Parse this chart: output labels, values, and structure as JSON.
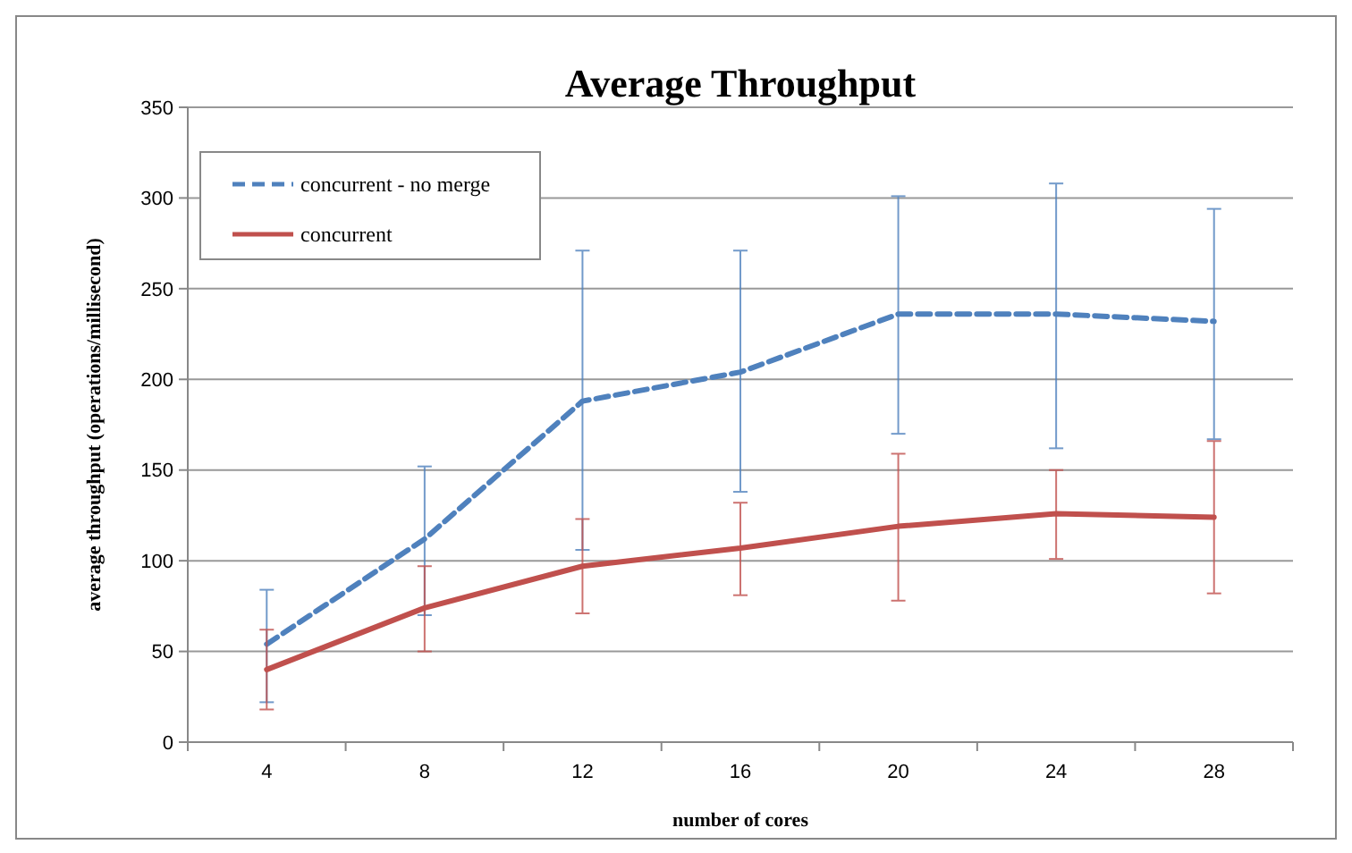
{
  "chart_data": {
    "type": "line",
    "title": "Average Throughput",
    "xlabel": "number of cores",
    "ylabel": "average throughput (operations/millisecond)",
    "categories": [
      "4",
      "8",
      "12",
      "16",
      "20",
      "24",
      "28"
    ],
    "series": [
      {
        "name": "concurrent - no merge",
        "color": "#4f81bd",
        "line_style": "dashed",
        "values": [
          54,
          112,
          188,
          204,
          236,
          236,
          232
        ],
        "errors": [
          [
            22,
            84
          ],
          [
            70,
            152
          ],
          [
            106,
            271
          ],
          [
            138,
            271
          ],
          [
            170,
            301
          ],
          [
            162,
            308
          ],
          [
            167,
            294
          ]
        ]
      },
      {
        "name": "concurrent",
        "color": "#c0504d",
        "line_style": "solid",
        "values": [
          40,
          74,
          97,
          107,
          119,
          126,
          124
        ],
        "errors": [
          [
            18,
            62
          ],
          [
            50,
            97
          ],
          [
            71,
            123
          ],
          [
            81,
            132
          ],
          [
            78,
            159
          ],
          [
            101,
            150
          ],
          [
            82,
            166
          ]
        ]
      }
    ],
    "ylim": [
      0,
      350
    ],
    "yticks": [
      0,
      50,
      100,
      150,
      200,
      250,
      300,
      350
    ],
    "grid": "y",
    "legend": "top left",
    "marker": "none"
  }
}
